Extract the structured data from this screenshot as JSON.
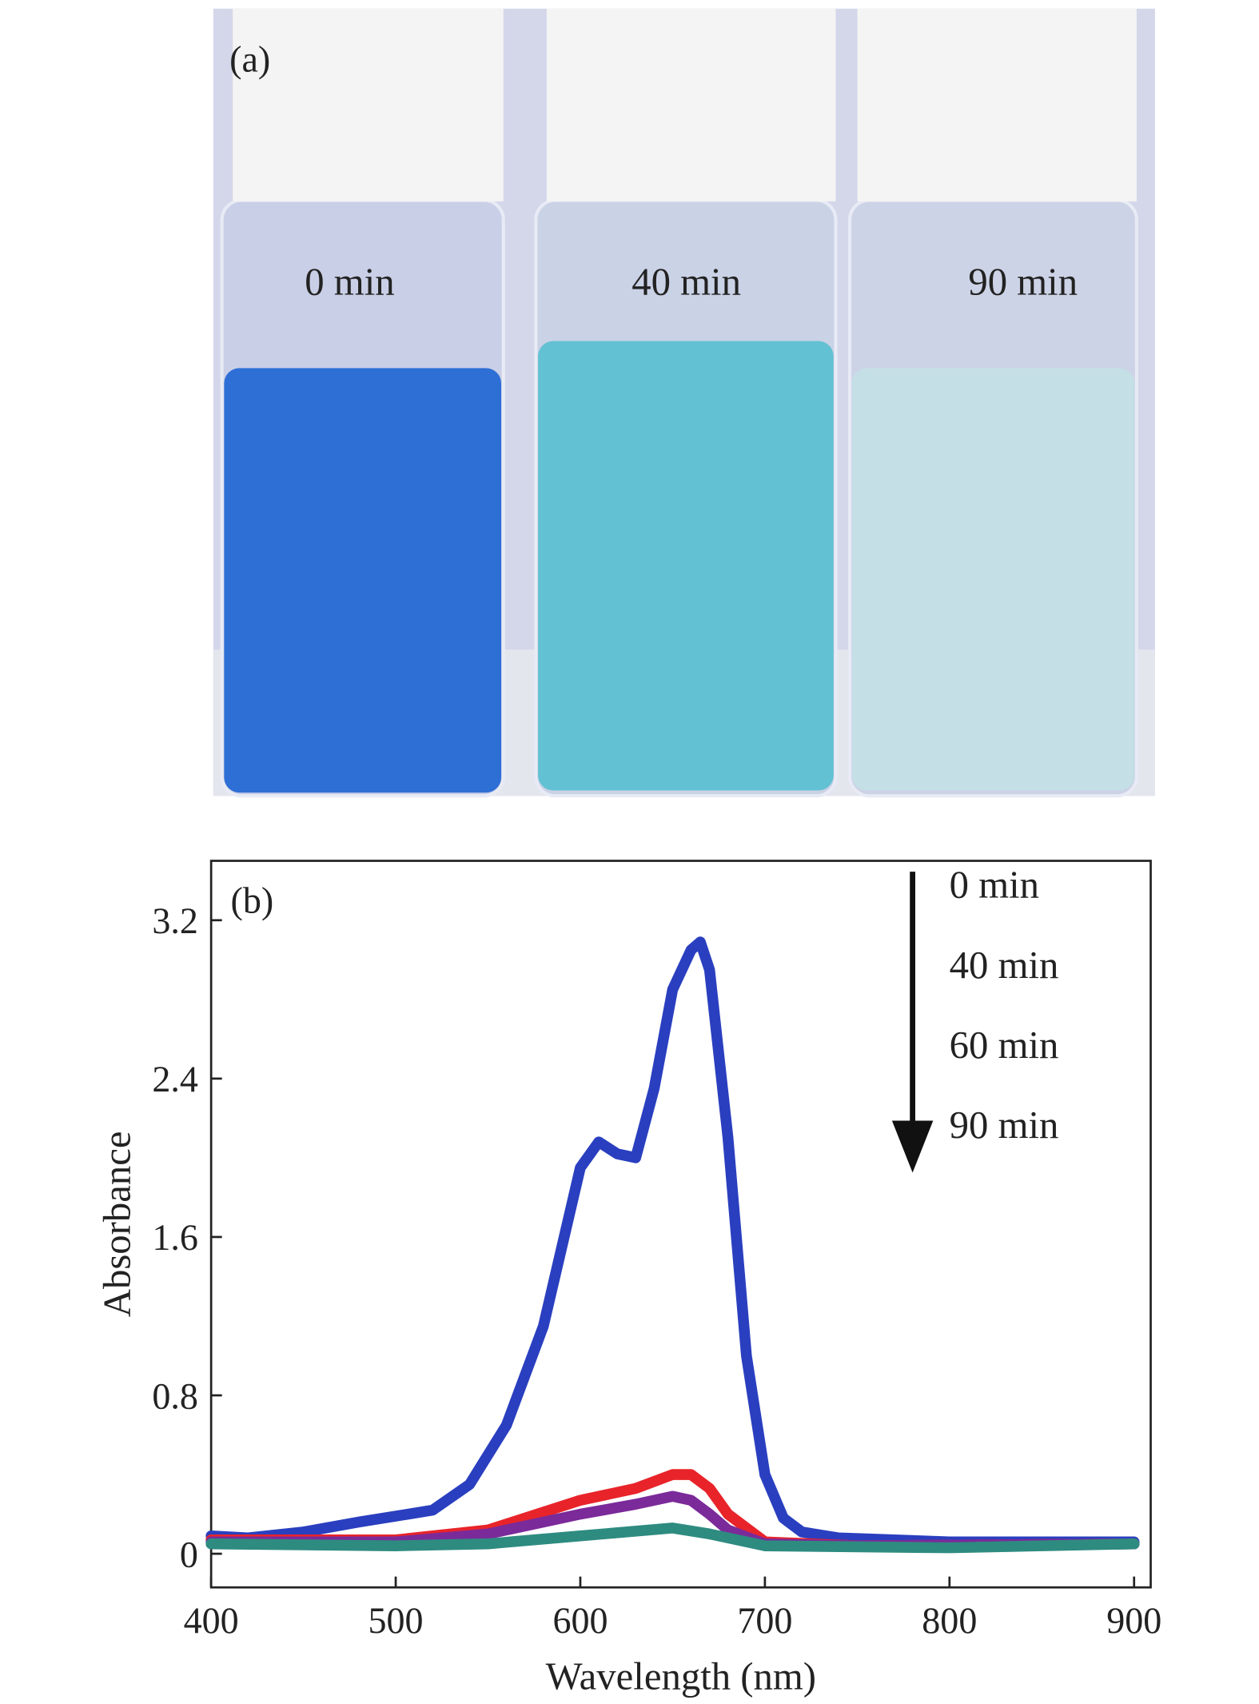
{
  "photo": {
    "label": "(a)",
    "vial_labels": [
      "0 min",
      "40 min",
      "90 min"
    ]
  },
  "chart_data": {
    "type": "line",
    "annotation": "(b)",
    "xlabel": "Wavelength (nm)",
    "ylabel": "Absorbance",
    "xlim": [
      400,
      909
    ],
    "ylim": [
      -0.17,
      3.5
    ],
    "xticks": [
      400,
      500,
      600,
      700,
      800,
      900
    ],
    "yticks": [
      0,
      0.8,
      1.6,
      2.4,
      3.2
    ],
    "series": [
      {
        "name": "0 min",
        "color": "#2a3fbf",
        "x": [
          400,
          420,
          450,
          480,
          500,
          520,
          540,
          560,
          580,
          590,
          600,
          610,
          620,
          630,
          640,
          650,
          660,
          665,
          670,
          680,
          690,
          700,
          710,
          720,
          740,
          800,
          900
        ],
        "values": [
          0.09,
          0.08,
          0.11,
          0.16,
          0.19,
          0.22,
          0.35,
          0.65,
          1.15,
          1.55,
          1.95,
          2.08,
          2.02,
          2.0,
          2.35,
          2.85,
          3.05,
          3.09,
          2.95,
          2.1,
          1.0,
          0.4,
          0.18,
          0.11,
          0.08,
          0.06,
          0.06
        ]
      },
      {
        "name": "40 min",
        "color": "#e8242a",
        "x": [
          400,
          500,
          550,
          600,
          630,
          650,
          660,
          670,
          680,
          700,
          750,
          900
        ],
        "values": [
          0.07,
          0.07,
          0.12,
          0.27,
          0.33,
          0.4,
          0.4,
          0.33,
          0.2,
          0.06,
          0.04,
          0.05
        ]
      },
      {
        "name": "60 min",
        "color": "#7b2a9a",
        "x": [
          400,
          500,
          550,
          600,
          630,
          650,
          660,
          670,
          680,
          700,
          750,
          900
        ],
        "values": [
          0.06,
          0.06,
          0.1,
          0.2,
          0.25,
          0.29,
          0.27,
          0.2,
          0.12,
          0.05,
          0.04,
          0.05
        ]
      },
      {
        "name": "90 min",
        "color": "#2e8b80",
        "x": [
          400,
          500,
          550,
          600,
          650,
          670,
          700,
          800,
          900
        ],
        "values": [
          0.05,
          0.04,
          0.05,
          0.09,
          0.13,
          0.1,
          0.04,
          0.03,
          0.05
        ]
      }
    ]
  }
}
